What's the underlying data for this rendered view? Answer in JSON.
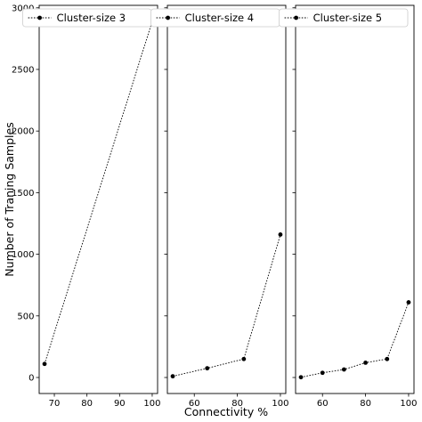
{
  "chart_data": {
    "type": "line",
    "ylabel": "Number of Traning Samples",
    "xlabel": "Connectivity %",
    "ylim": [
      -130,
      3020
    ],
    "yticks": [
      0,
      500,
      1000,
      1500,
      2000,
      2500,
      3000
    ],
    "yticklabels": [
      "0",
      "500",
      "1000",
      "1500",
      "2000",
      "2500",
      "3000"
    ],
    "shared_y": true,
    "line_style": "dotted",
    "marker": "circle",
    "color": "#000000",
    "legend_position": "top-right",
    "panels": [
      {
        "series": [
          {
            "name": "Cluster-size 3",
            "x": [
              67,
              100
            ],
            "y": [
              110,
              2890
            ]
          }
        ],
        "xlim": [
          65.35,
          101.65
        ],
        "xticks": [
          70,
          80,
          90,
          100
        ],
        "xticklabels": [
          "70",
          "80",
          "90",
          "100"
        ]
      },
      {
        "series": [
          {
            "name": "Cluster-size 4",
            "x": [
              50,
              66,
              83,
              100
            ],
            "y": [
              10,
              75,
              150,
              1160
            ]
          }
        ],
        "xlim": [
          47.5,
          102.5
        ],
        "xticks": [
          60,
          80,
          100
        ],
        "xticklabels": [
          "60",
          "80",
          "100"
        ]
      },
      {
        "series": [
          {
            "name": "Cluster-size 5",
            "x": [
              50,
              60,
              70,
              80,
              90,
              100
            ],
            "y": [
              2,
              38,
              65,
              120,
              150,
              610
            ]
          }
        ],
        "xlim": [
          47.5,
          102.5
        ],
        "xticks": [
          60,
          80,
          100
        ],
        "xticklabels": [
          "60",
          "80",
          "100"
        ]
      }
    ]
  }
}
